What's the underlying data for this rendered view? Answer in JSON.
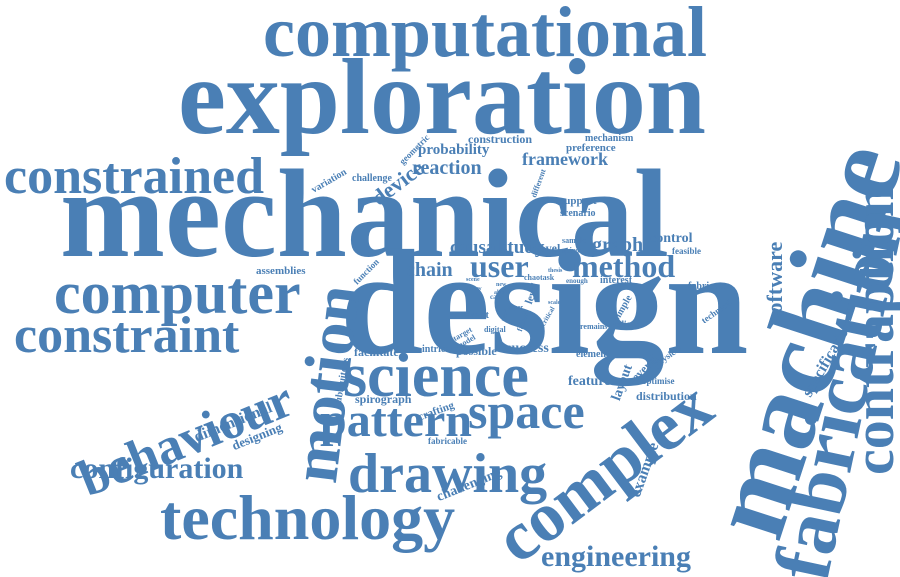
{
  "colors": {
    "primary": "#4a7fb5",
    "background": "#ffffff"
  },
  "words": {
    "computational": "computational",
    "exploration": "exploration",
    "mechanical": "mechanical",
    "design": "design",
    "machine": "machine",
    "fabrication": "fabrication",
    "contraption": "contraption",
    "constrained": "constrained",
    "computer": "computer",
    "constraint": "constraint",
    "behaviour": "behaviour",
    "motion": "motion",
    "science": "science",
    "space": "space",
    "pattern": "pattern",
    "drawing": "drawing",
    "complex": "complex",
    "technology": "technology",
    "configuration": "configuration",
    "engineering": "engineering",
    "software": "software",
    "specification": "specification",
    "dimensional": "dimensional",
    "designing": "designing",
    "reaction": "reaction",
    "framework": "framework",
    "probability": "probability",
    "device": "device",
    "construction": "construction",
    "user": "user",
    "method": "method",
    "causal": "causal",
    "study": "study",
    "chain": "chain",
    "graph": "graph",
    "control": "control",
    "support": "support",
    "scenario": "scenario",
    "mechanism": "mechanism",
    "preference": "preference",
    "geometric": "geometric",
    "variation": "variation",
    "challenge": "challenge",
    "different": "different",
    "assemblies": "assemblies",
    "function": "function",
    "novel": "novel",
    "sample": "sample",
    "feasible": "feasible",
    "fabricate": "fabricate",
    "technical": "technical",
    "interest": "interest",
    "simple": "simple",
    "tedious": "tedious",
    "remains": "remains",
    "event": "event",
    "target": "target",
    "digital": "digital",
    "model": "model",
    "facilitate": "facilitate",
    "intricate": "intricate",
    "possible": "possible",
    "success": "success",
    "element": "element",
    "feature": "feature",
    "layout": "layout",
    "several": "several",
    "physical": "physical",
    "optimise": "optimise",
    "distribution": "distribution",
    "example": "example",
    "ubiquitous": "ubiquitous",
    "spirograph": "spirograph",
    "crafting": "crafting",
    "fabricable": "fabricable",
    "challenging": "challenging",
    "level": "level",
    "failure": "failure",
    "enough": "enough",
    "task": "task",
    "chao": "chao",
    "spirou": "spirou",
    "thesis": "thesis",
    "new": "new",
    "scene": "scene",
    "arrow": "arrow",
    "case": "case",
    "able": "able",
    "part": "part",
    "scale": "scale",
    "critical": "critical",
    "paper": "paper"
  }
}
